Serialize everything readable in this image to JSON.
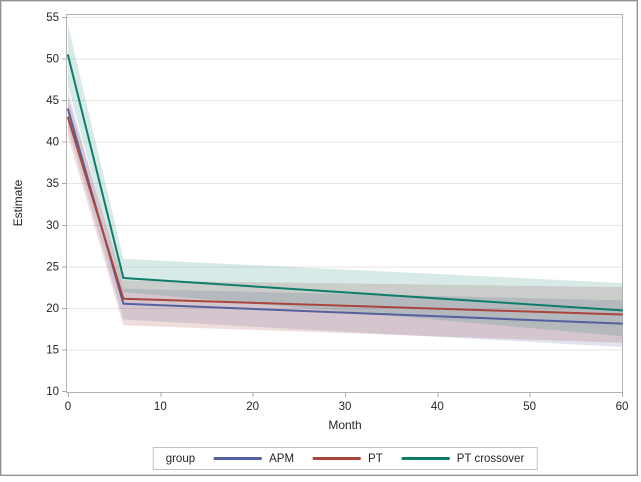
{
  "figure": {
    "background": "#ffffff",
    "outer_border_color": "#8f8f8f"
  },
  "palette": {
    "axis_line": "#ababab",
    "grid_line": "#e6e6e6",
    "tick_text": "#262626",
    "wall_border": "#b3b3b3"
  },
  "chart_data": {
    "type": "line",
    "title": "",
    "xlabel": "Month",
    "ylabel": "Estimate",
    "x": [
      0,
      6,
      60
    ],
    "xlim": [
      0,
      60
    ],
    "ylim": [
      10,
      55
    ],
    "xticks": [
      0,
      10,
      20,
      30,
      40,
      50,
      60
    ],
    "yticks": [
      10,
      15,
      20,
      25,
      30,
      35,
      40,
      45,
      50,
      55
    ],
    "grid": "horizontal",
    "legend_position": "bottom",
    "legend_title": "group",
    "series": [
      {
        "name": "APM",
        "color": "#55619E",
        "band_color": "rgba(85,97,158,0.18)",
        "values": [
          43.9,
          20.5,
          18.1
        ],
        "lower": [
          41.7,
          18.6,
          15.3
        ],
        "upper": [
          46.1,
          22.3,
          20.9
        ]
      },
      {
        "name": "PT",
        "color": "#A9453B",
        "band_color": "rgba(169,69,59,0.18)",
        "values": [
          42.9,
          21.1,
          19.2
        ],
        "lower": [
          40.6,
          17.9,
          15.8
        ],
        "upper": [
          45.2,
          23.3,
          22.5
        ]
      },
      {
        "name": "PT crossover",
        "color": "#0E7C6B",
        "band_color": "rgba(14,124,107,0.16)",
        "values": [
          50.4,
          23.6,
          19.7
        ],
        "lower": [
          46.8,
          21.9,
          16.6
        ],
        "upper": [
          54.0,
          25.9,
          23.0
        ]
      }
    ]
  }
}
